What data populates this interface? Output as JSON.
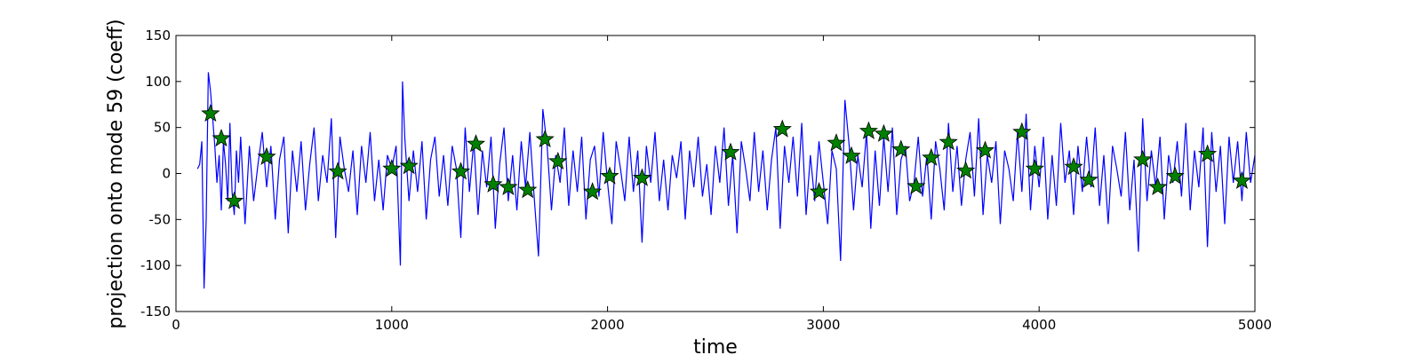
{
  "chart_data": {
    "type": "line",
    "title": "",
    "xlabel": "time",
    "ylabel": "projection onto mode 59 (coeff)",
    "xlim": [
      0,
      5000
    ],
    "ylim": [
      -150,
      150
    ],
    "xticks": [
      0,
      1000,
      2000,
      3000,
      4000,
      5000
    ],
    "yticks": [
      -150,
      -100,
      -50,
      0,
      50,
      100,
      150
    ],
    "grid": false,
    "series": [
      {
        "kind": "line",
        "color": "#0000ff",
        "x": [
          100,
          110,
          120,
          130,
          140,
          150,
          160,
          170,
          180,
          190,
          200,
          210,
          220,
          230,
          240,
          250,
          260,
          270,
          280,
          290,
          300,
          320,
          340,
          360,
          380,
          400,
          420,
          440,
          460,
          480,
          500,
          520,
          540,
          560,
          580,
          600,
          620,
          640,
          660,
          680,
          700,
          720,
          740,
          760,
          780,
          800,
          820,
          840,
          860,
          880,
          900,
          920,
          940,
          960,
          980,
          1000,
          1020,
          1040,
          1050,
          1060,
          1080,
          1100,
          1120,
          1140,
          1160,
          1180,
          1200,
          1220,
          1240,
          1260,
          1280,
          1300,
          1320,
          1340,
          1360,
          1380,
          1400,
          1420,
          1440,
          1460,
          1480,
          1500,
          1520,
          1540,
          1560,
          1580,
          1600,
          1620,
          1640,
          1660,
          1680,
          1700,
          1720,
          1740,
          1760,
          1780,
          1800,
          1820,
          1840,
          1860,
          1880,
          1900,
          1920,
          1940,
          1960,
          1980,
          2000,
          2020,
          2040,
          2060,
          2080,
          2100,
          2120,
          2140,
          2160,
          2180,
          2200,
          2220,
          2240,
          2260,
          2280,
          2300,
          2320,
          2340,
          2360,
          2380,
          2400,
          2420,
          2440,
          2460,
          2480,
          2500,
          2520,
          2540,
          2560,
          2580,
          2600,
          2620,
          2640,
          2660,
          2680,
          2700,
          2720,
          2740,
          2760,
          2780,
          2800,
          2820,
          2840,
          2860,
          2880,
          2900,
          2920,
          2940,
          2960,
          2980,
          3000,
          3020,
          3040,
          3060,
          3080,
          3100,
          3120,
          3140,
          3160,
          3180,
          3200,
          3220,
          3240,
          3260,
          3280,
          3300,
          3320,
          3340,
          3360,
          3380,
          3400,
          3420,
          3440,
          3460,
          3480,
          3500,
          3520,
          3540,
          3560,
          3580,
          3600,
          3620,
          3640,
          3660,
          3680,
          3700,
          3720,
          3740,
          3760,
          3780,
          3800,
          3820,
          3840,
          3860,
          3880,
          3900,
          3920,
          3940,
          3960,
          3980,
          4000,
          4020,
          4040,
          4060,
          4080,
          4100,
          4120,
          4140,
          4160,
          4180,
          4200,
          4220,
          4240,
          4260,
          4280,
          4300,
          4320,
          4340,
          4360,
          4380,
          4400,
          4420,
          4440,
          4460,
          4480,
          4500,
          4520,
          4540,
          4560,
          4580,
          4600,
          4620,
          4640,
          4660,
          4680,
          4700,
          4720,
          4740,
          4760,
          4780,
          4800,
          4820,
          4840,
          4860,
          4880,
          4900,
          4920,
          4940,
          4960,
          4980,
          5000
        ],
        "y": [
          5,
          10,
          35,
          -125,
          -50,
          110,
          90,
          60,
          30,
          -10,
          20,
          -40,
          35,
          10,
          -30,
          55,
          -20,
          -45,
          25,
          -10,
          40,
          -55,
          30,
          -30,
          10,
          45,
          -15,
          30,
          -50,
          15,
          40,
          -65,
          25,
          -20,
          35,
          -40,
          10,
          50,
          -30,
          20,
          -10,
          60,
          -70,
          40,
          5,
          -20,
          25,
          -45,
          30,
          -10,
          45,
          -30,
          15,
          -40,
          20,
          5,
          30,
          -100,
          100,
          40,
          -30,
          25,
          -20,
          35,
          -50,
          15,
          40,
          -25,
          20,
          -35,
          30,
          5,
          -70,
          50,
          -20,
          35,
          -45,
          25,
          -15,
          40,
          -60,
          10,
          50,
          -30,
          20,
          -40,
          35,
          -15,
          45,
          -25,
          -90,
          70,
          30,
          -40,
          20,
          -10,
          50,
          -35,
          25,
          -20,
          40,
          -50,
          15,
          30,
          -25,
          45,
          -10,
          -55,
          35,
          5,
          -30,
          40,
          -20,
          25,
          -75,
          30,
          -10,
          45,
          -30,
          15,
          -40,
          20,
          -5,
          35,
          -50,
          25,
          -15,
          40,
          -25,
          10,
          -45,
          30,
          -10,
          50,
          -35,
          20,
          -65,
          35,
          5,
          -30,
          45,
          -20,
          25,
          -40,
          15,
          50,
          -60,
          30,
          -10,
          40,
          -25,
          55,
          -45,
          20,
          -30,
          35,
          -10,
          -55,
          25,
          5,
          -95,
          80,
          30,
          -40,
          20,
          -15,
          45,
          -60,
          25,
          -35,
          40,
          -20,
          50,
          -45,
          15,
          30,
          -30,
          -10,
          40,
          -25,
          20,
          -50,
          35,
          5,
          -40,
          55,
          -20,
          30,
          -35,
          15,
          45,
          -25,
          60,
          -45,
          20,
          -10,
          35,
          -55,
          25,
          5,
          -30,
          45,
          -20,
          65,
          -40,
          30,
          -15,
          40,
          -50,
          20,
          -35,
          55,
          -10,
          25,
          -45,
          30,
          -20,
          40,
          -15,
          50,
          -35,
          20,
          -55,
          30,
          5,
          -25,
          45,
          -40,
          15,
          -85,
          60,
          -30,
          25,
          -15,
          40,
          -50,
          20,
          -10,
          35,
          -25,
          55,
          -40,
          25,
          -15,
          50,
          -80,
          45,
          -20,
          30,
          -55,
          40,
          -10,
          35,
          -30,
          45,
          -10,
          20
        ]
      },
      {
        "kind": "scatter",
        "marker": "star",
        "color": "#008000",
        "x": [
          160,
          210,
          270,
          420,
          750,
          1000,
          1080,
          1320,
          1390,
          1470,
          1540,
          1630,
          1710,
          1770,
          1930,
          2010,
          2160,
          2570,
          2810,
          2980,
          3060,
          3130,
          3210,
          3280,
          3360,
          3430,
          3500,
          3580,
          3660,
          3750,
          3920,
          3980,
          4160,
          4230,
          4480,
          4550,
          4630,
          4780,
          4940
        ],
        "y": [
          65,
          38,
          -30,
          18,
          2,
          5,
          8,
          2,
          32,
          -12,
          -15,
          -18,
          37,
          13,
          -20,
          -3,
          -5,
          23,
          48,
          -20,
          33,
          19,
          46,
          43,
          26,
          -14,
          17,
          34,
          3,
          25,
          45,
          5,
          7,
          -7,
          15,
          -15,
          -3,
          21,
          -8
        ]
      }
    ]
  }
}
